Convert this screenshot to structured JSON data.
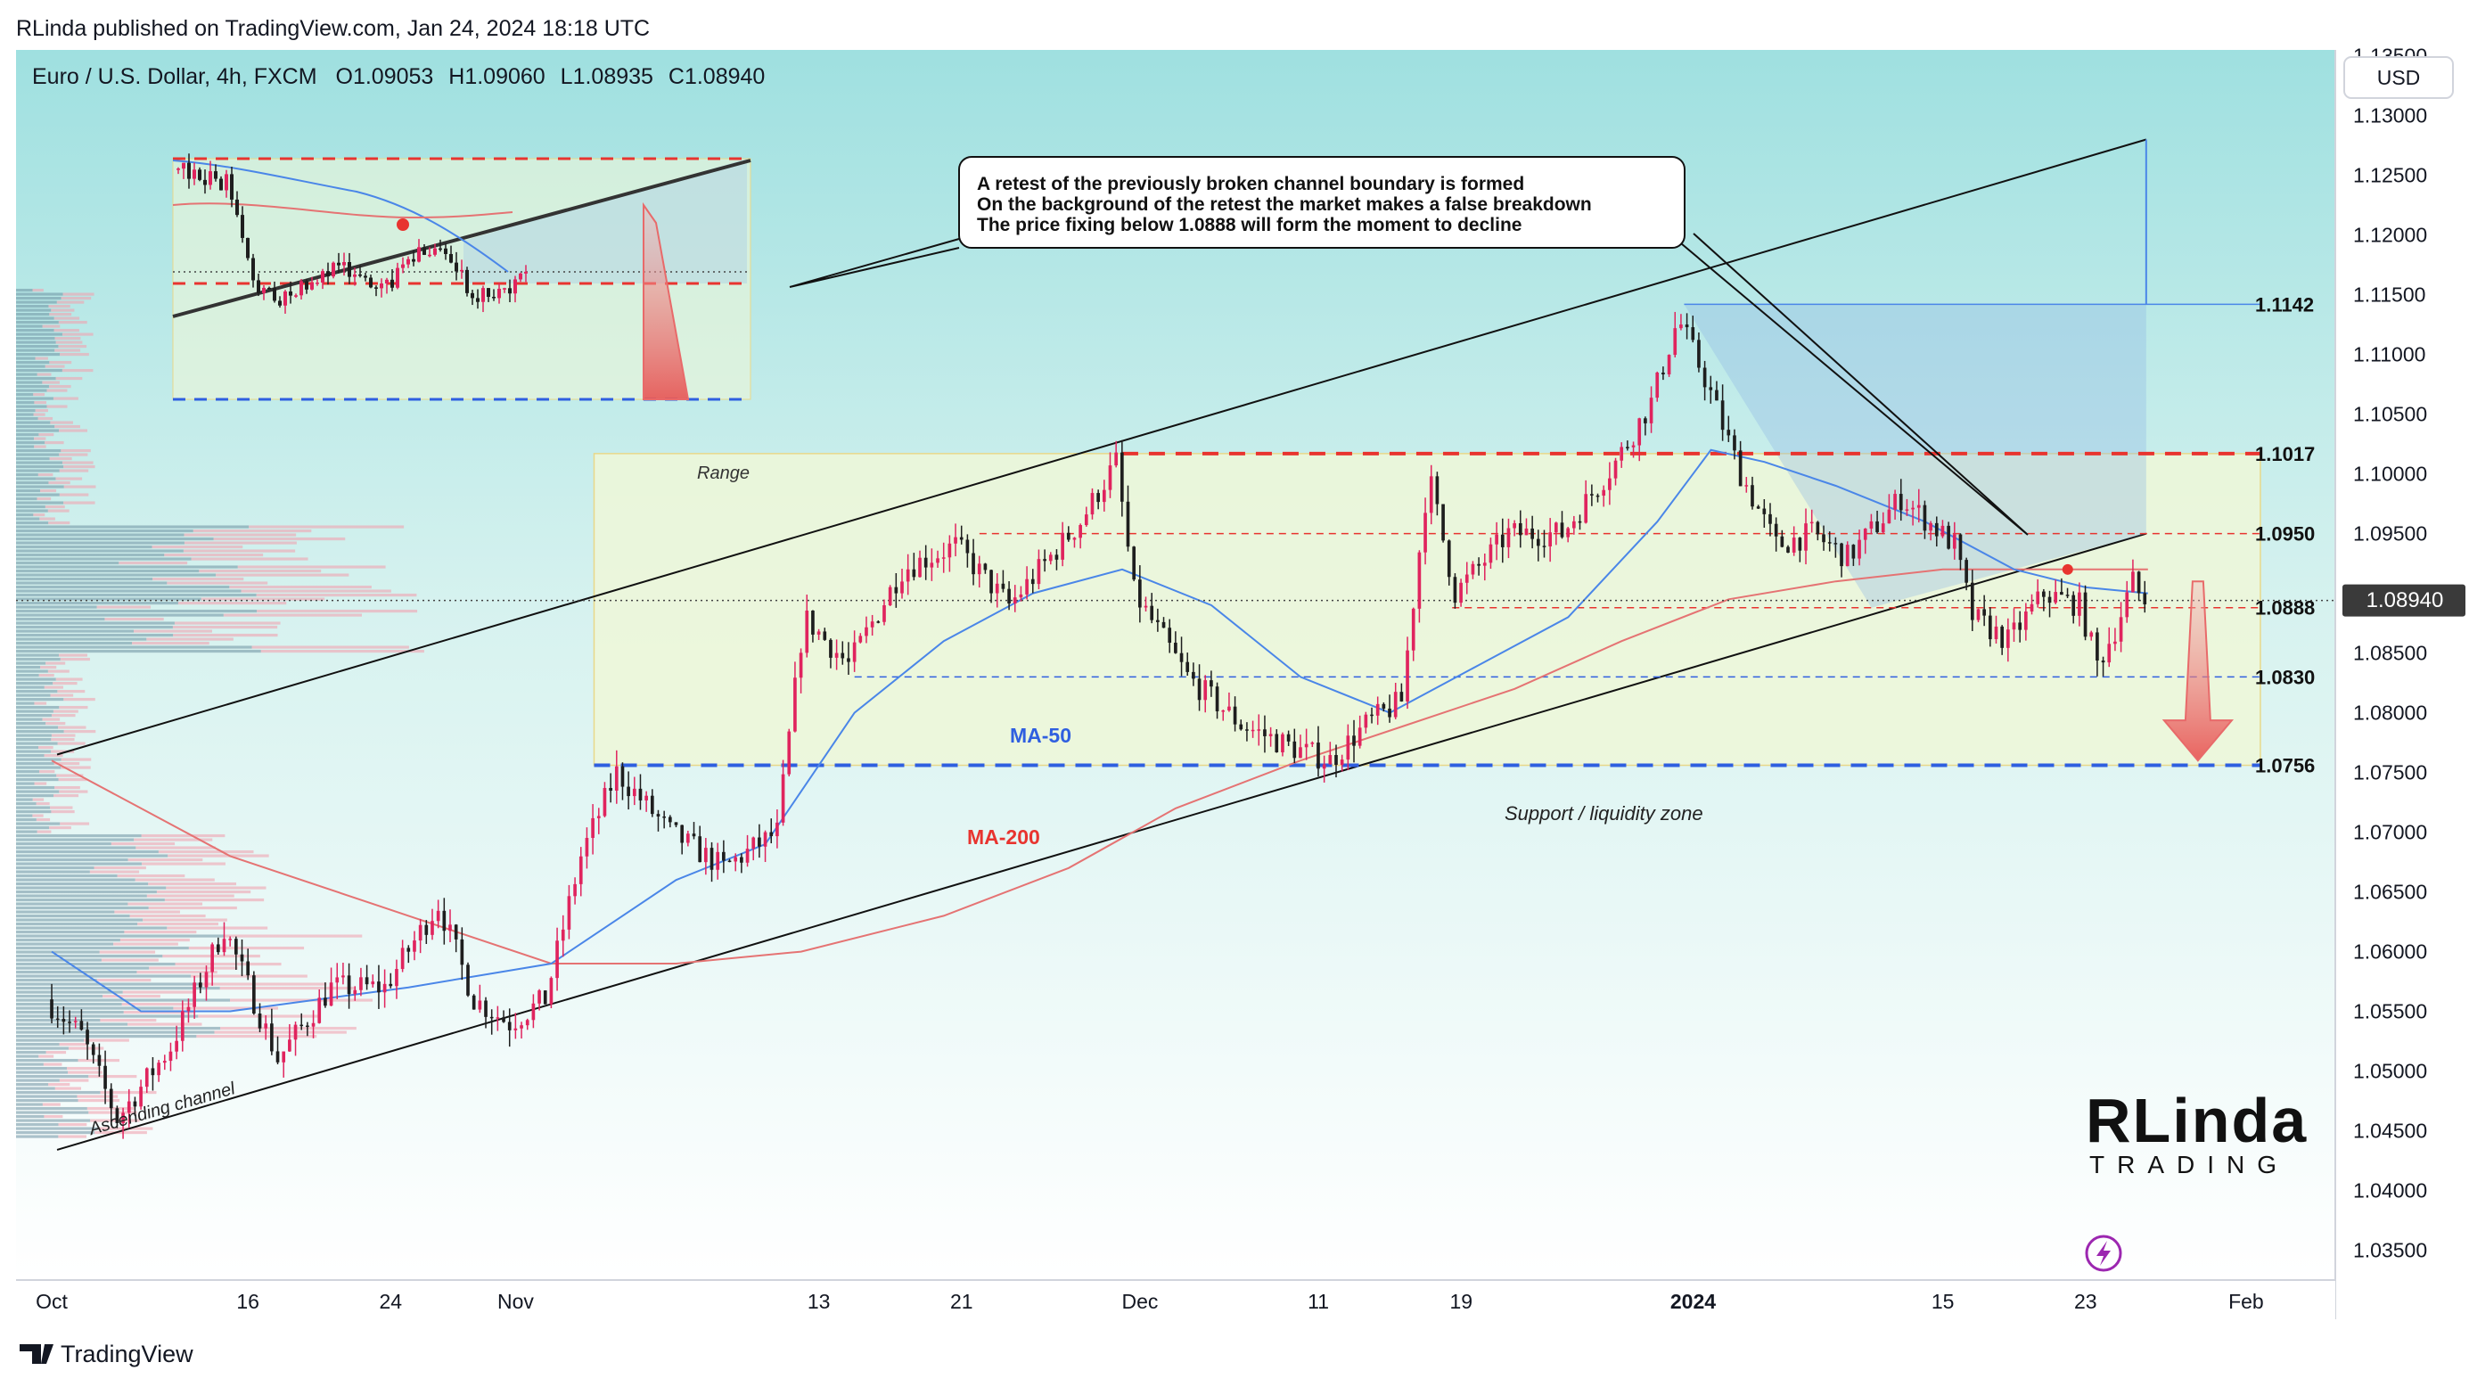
{
  "header": {
    "published": "RLinda published on TradingView.com, Jan 24, 2024 18:18 UTC",
    "symbol": "Euro / U.S. Dollar, 4h, FXCM",
    "ohlc": {
      "o": "O1.09053",
      "h": "H1.09060",
      "l": "L1.08935",
      "c": "C1.08940"
    }
  },
  "currency_button": "USD",
  "footer": {
    "brand": "TradingView"
  },
  "logo": {
    "line1": "RLinda",
    "line2": "TRADING"
  },
  "colors": {
    "bullish": "#e0245e",
    "bearish": "#1e1e1e",
    "ma50": "#4a86e8",
    "ma200": "#e57373",
    "red_level": "#e8342f",
    "blue_level": "#2f5fe0",
    "range_fill": "#eef7d8"
  },
  "chart_data": {
    "type": "candlestick",
    "title": "Euro / U.S. Dollar, 4h, FXCM",
    "ylim": [
      1.0325,
      1.1355
    ],
    "y_ticks": [
      "1.03500",
      "1.04000",
      "1.04500",
      "1.05000",
      "1.05500",
      "1.06000",
      "1.06500",
      "1.07000",
      "1.07500",
      "1.08000",
      "1.08500",
      "1.09000",
      "1.09500",
      "1.10000",
      "1.10500",
      "1.11000",
      "1.11500",
      "1.12000",
      "1.12500",
      "1.13000",
      "1.13500"
    ],
    "x_ticks": [
      {
        "label": "Oct",
        "t": 0
      },
      {
        "label": "16",
        "t": 11
      },
      {
        "label": "24",
        "t": 19
      },
      {
        "label": "Nov",
        "t": 26
      },
      {
        "label": "13",
        "t": 43
      },
      {
        "label": "21",
        "t": 51
      },
      {
        "label": "Dec",
        "t": 61
      },
      {
        "label": "11",
        "t": 71
      },
      {
        "label": "19",
        "t": 79
      },
      {
        "label": "2024",
        "t": 92
      },
      {
        "label": "15",
        "t": 106
      },
      {
        "label": "23",
        "t": 114
      },
      {
        "label": "Feb",
        "t": 123
      }
    ],
    "x_range_days": [
      -2,
      128
    ],
    "current_price": "1.08940",
    "levels": [
      {
        "label": "1.1142",
        "value": 1.1142,
        "style": "thin-blue"
      },
      {
        "label": "1.1017",
        "value": 1.1017,
        "style": "red-thick"
      },
      {
        "label": "1.0950",
        "value": 1.095,
        "style": "red-thin"
      },
      {
        "label": "1.0888",
        "value": 1.0888,
        "style": "red-thin"
      },
      {
        "label": "1.0830",
        "value": 1.083,
        "style": "blue-thin"
      },
      {
        "label": "1.0756",
        "value": 1.0756,
        "style": "blue-thick"
      }
    ],
    "annotations": {
      "callout": [
        "A retest of the previously broken channel boundary is formed",
        "On the background of the retest the market makes a false breakdown",
        "The price fixing below 1.0888 will form the moment to decline"
      ],
      "range": "Range",
      "support": "Support / liquidity zone",
      "ascending_channel": "Ascending channel",
      "ma50": "MA-50",
      "ma200": "MA-200"
    },
    "channel": {
      "upper": [
        [
          0.3,
          1.0765
        ],
        [
          117.4,
          1.128
        ]
      ],
      "lower": [
        [
          0.3,
          1.0434
        ],
        [
          117.4,
          1.095
        ]
      ]
    },
    "key_points": [
      {
        "t": 0,
        "price": 1.056
      },
      {
        "t": 2,
        "price": 1.053
      },
      {
        "t": 4,
        "price": 1.046
      },
      {
        "t": 7,
        "price": 1.052
      },
      {
        "t": 10,
        "price": 1.062
      },
      {
        "t": 13,
        "price": 1.051
      },
      {
        "t": 16,
        "price": 1.057
      },
      {
        "t": 19,
        "price": 1.057
      },
      {
        "t": 22,
        "price": 1.064
      },
      {
        "t": 24,
        "price": 1.056
      },
      {
        "t": 26,
        "price": 1.054
      },
      {
        "t": 28,
        "price": 1.056
      },
      {
        "t": 30,
        "price": 1.068
      },
      {
        "t": 32,
        "price": 1.075
      },
      {
        "t": 35,
        "price": 1.07
      },
      {
        "t": 38,
        "price": 1.067
      },
      {
        "t": 41,
        "price": 1.07
      },
      {
        "t": 42.5,
        "price": 1.088
      },
      {
        "t": 45,
        "price": 1.084
      },
      {
        "t": 48,
        "price": 1.092
      },
      {
        "t": 51,
        "price": 1.094
      },
      {
        "t": 54,
        "price": 1.089
      },
      {
        "t": 58,
        "price": 1.096
      },
      {
        "t": 60,
        "price": 1.101
      },
      {
        "t": 61,
        "price": 1.09
      },
      {
        "t": 64,
        "price": 1.083
      },
      {
        "t": 67,
        "price": 1.079
      },
      {
        "t": 70,
        "price": 1.077
      },
      {
        "t": 72,
        "price": 1.076
      },
      {
        "t": 74,
        "price": 1.079
      },
      {
        "t": 76,
        "price": 1.081
      },
      {
        "t": 77.5,
        "price": 1.1
      },
      {
        "t": 79,
        "price": 1.09
      },
      {
        "t": 82,
        "price": 1.095
      },
      {
        "t": 85,
        "price": 1.095
      },
      {
        "t": 88,
        "price": 1.101
      },
      {
        "t": 90,
        "price": 1.106
      },
      {
        "t": 91.5,
        "price": 1.113
      },
      {
        "t": 93,
        "price": 1.108
      },
      {
        "t": 95,
        "price": 1.1
      },
      {
        "t": 97,
        "price": 1.094
      },
      {
        "t": 99,
        "price": 1.095
      },
      {
        "t": 101,
        "price": 1.093
      },
      {
        "t": 104,
        "price": 1.098
      },
      {
        "t": 107,
        "price": 1.094
      },
      {
        "t": 108,
        "price": 1.088
      },
      {
        "t": 110,
        "price": 1.086
      },
      {
        "t": 112,
        "price": 1.09
      },
      {
        "t": 114,
        "price": 1.089
      },
      {
        "t": 115,
        "price": 1.084
      },
      {
        "t": 116,
        "price": 1.087
      },
      {
        "t": 117,
        "price": 1.091
      },
      {
        "t": 117.5,
        "price": 1.0894
      }
    ],
    "ma50_points": [
      {
        "t": 0,
        "price": 1.06
      },
      {
        "t": 5,
        "price": 1.055
      },
      {
        "t": 10,
        "price": 1.055
      },
      {
        "t": 20,
        "price": 1.057
      },
      {
        "t": 28,
        "price": 1.059
      },
      {
        "t": 35,
        "price": 1.066
      },
      {
        "t": 40,
        "price": 1.069
      },
      {
        "t": 45,
        "price": 1.08
      },
      {
        "t": 50,
        "price": 1.086
      },
      {
        "t": 55,
        "price": 1.09
      },
      {
        "t": 60,
        "price": 1.092
      },
      {
        "t": 65,
        "price": 1.089
      },
      {
        "t": 70,
        "price": 1.083
      },
      {
        "t": 75,
        "price": 1.08
      },
      {
        "t": 80,
        "price": 1.084
      },
      {
        "t": 85,
        "price": 1.088
      },
      {
        "t": 90,
        "price": 1.096
      },
      {
        "t": 93,
        "price": 1.102
      },
      {
        "t": 96,
        "price": 1.101
      },
      {
        "t": 100,
        "price": 1.099
      },
      {
        "t": 105,
        "price": 1.096
      },
      {
        "t": 110,
        "price": 1.092
      },
      {
        "t": 114,
        "price": 1.0905
      },
      {
        "t": 117.5,
        "price": 1.09
      }
    ],
    "ma200_points": [
      {
        "t": 0,
        "price": 1.076
      },
      {
        "t": 5,
        "price": 1.072
      },
      {
        "t": 10,
        "price": 1.068
      },
      {
        "t": 20,
        "price": 1.063
      },
      {
        "t": 28,
        "price": 1.059
      },
      {
        "t": 35,
        "price": 1.059
      },
      {
        "t": 42,
        "price": 1.06
      },
      {
        "t": 50,
        "price": 1.063
      },
      {
        "t": 57,
        "price": 1.067
      },
      {
        "t": 63,
        "price": 1.072
      },
      {
        "t": 70,
        "price": 1.076
      },
      {
        "t": 76,
        "price": 1.079
      },
      {
        "t": 82,
        "price": 1.082
      },
      {
        "t": 88,
        "price": 1.086
      },
      {
        "t": 94,
        "price": 1.0895
      },
      {
        "t": 100,
        "price": 1.091
      },
      {
        "t": 106,
        "price": 1.092
      },
      {
        "t": 112,
        "price": 1.092
      },
      {
        "t": 117.5,
        "price": 1.092
      }
    ]
  }
}
